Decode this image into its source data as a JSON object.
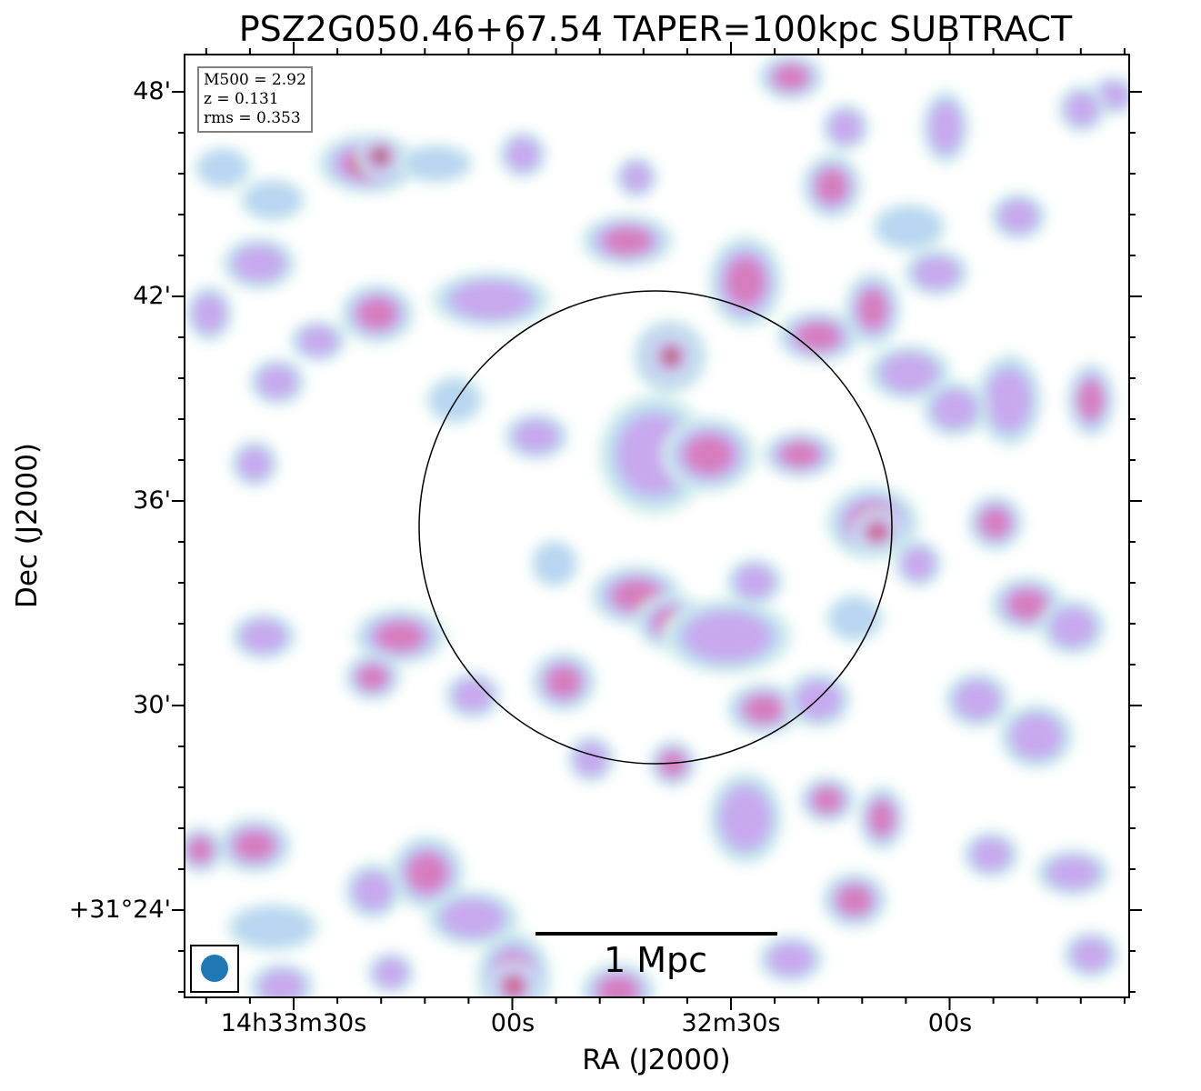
{
  "chart_data": {
    "type": "heatmap",
    "title": "PSZ2G050.46+67.54 TAPER=100kpc SUBTRACT",
    "xlabel": "RA (J2000)",
    "ylabel": "Dec (J2000)",
    "x_ticks": [
      "14h33m30s",
      "00s",
      "32m30s",
      "00s"
    ],
    "y_ticks": [
      "48'",
      "42'",
      "36'",
      "30'",
      "+31°24'"
    ],
    "grid": false,
    "colormap": [
      "#d5f0ec",
      "#b9d6f2",
      "#c8a9ee",
      "#d67dbd",
      "#c8606e",
      "#3e7a2e"
    ],
    "annotations": {
      "info_lines": [
        "M500 = 2.92",
        "z = 0.131",
        "rms = 0.353"
      ],
      "scale_bar_label": "1 Mpc",
      "beam_color": "#1f77b4",
      "circle_color": "#000000"
    }
  }
}
